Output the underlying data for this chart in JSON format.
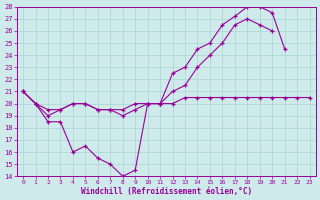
{
  "xlabel": "Windchill (Refroidissement éolien,°C)",
  "xlim": [
    -0.5,
    23.5
  ],
  "ylim": [
    14,
    28
  ],
  "yticks": [
    14,
    15,
    16,
    17,
    18,
    19,
    20,
    21,
    22,
    23,
    24,
    25,
    26,
    27,
    28
  ],
  "xticks": [
    0,
    1,
    2,
    3,
    4,
    5,
    6,
    7,
    8,
    9,
    10,
    11,
    12,
    13,
    14,
    15,
    16,
    17,
    18,
    19,
    20,
    21,
    22,
    23
  ],
  "bg_color": "#ceeaea",
  "line_color": "#990099",
  "grid_color": "#aad4d4",
  "line1_x": [
    0,
    1,
    2,
    3,
    4,
    5,
    6,
    7,
    8,
    9,
    10,
    11,
    12,
    13,
    14,
    15,
    16,
    17,
    18,
    19,
    20,
    21
  ],
  "line1_y": [
    21.0,
    20.0,
    18.5,
    18.5,
    16.0,
    16.5,
    15.5,
    15.0,
    14.0,
    14.5,
    20.0,
    20.0,
    22.5,
    23.0,
    24.5,
    25.0,
    26.5,
    27.2,
    28.0,
    28.0,
    27.5,
    24.5
  ],
  "line2_x": [
    0,
    1,
    2,
    3,
    4,
    5,
    6,
    7,
    8,
    9,
    10,
    11,
    12,
    13,
    14,
    15,
    16,
    17,
    18,
    19,
    20
  ],
  "line2_y": [
    21.0,
    20.0,
    19.0,
    19.5,
    20.0,
    20.0,
    19.5,
    19.5,
    19.0,
    19.5,
    20.0,
    20.0,
    21.0,
    21.5,
    23.0,
    24.0,
    25.0,
    26.5,
    27.0,
    26.5,
    26.0
  ],
  "line3_x": [
    0,
    1,
    2,
    3,
    4,
    5,
    6,
    7,
    8,
    9,
    10,
    11,
    12,
    13,
    14,
    15,
    16,
    17,
    18,
    19,
    20,
    21,
    22,
    23
  ],
  "line3_y": [
    21.0,
    20.0,
    19.5,
    19.5,
    20.0,
    20.0,
    19.5,
    19.5,
    19.5,
    20.0,
    20.0,
    20.0,
    20.0,
    20.5,
    20.5,
    20.5,
    20.5,
    20.5,
    20.5,
    20.5,
    20.5,
    20.5,
    20.5,
    20.5
  ]
}
